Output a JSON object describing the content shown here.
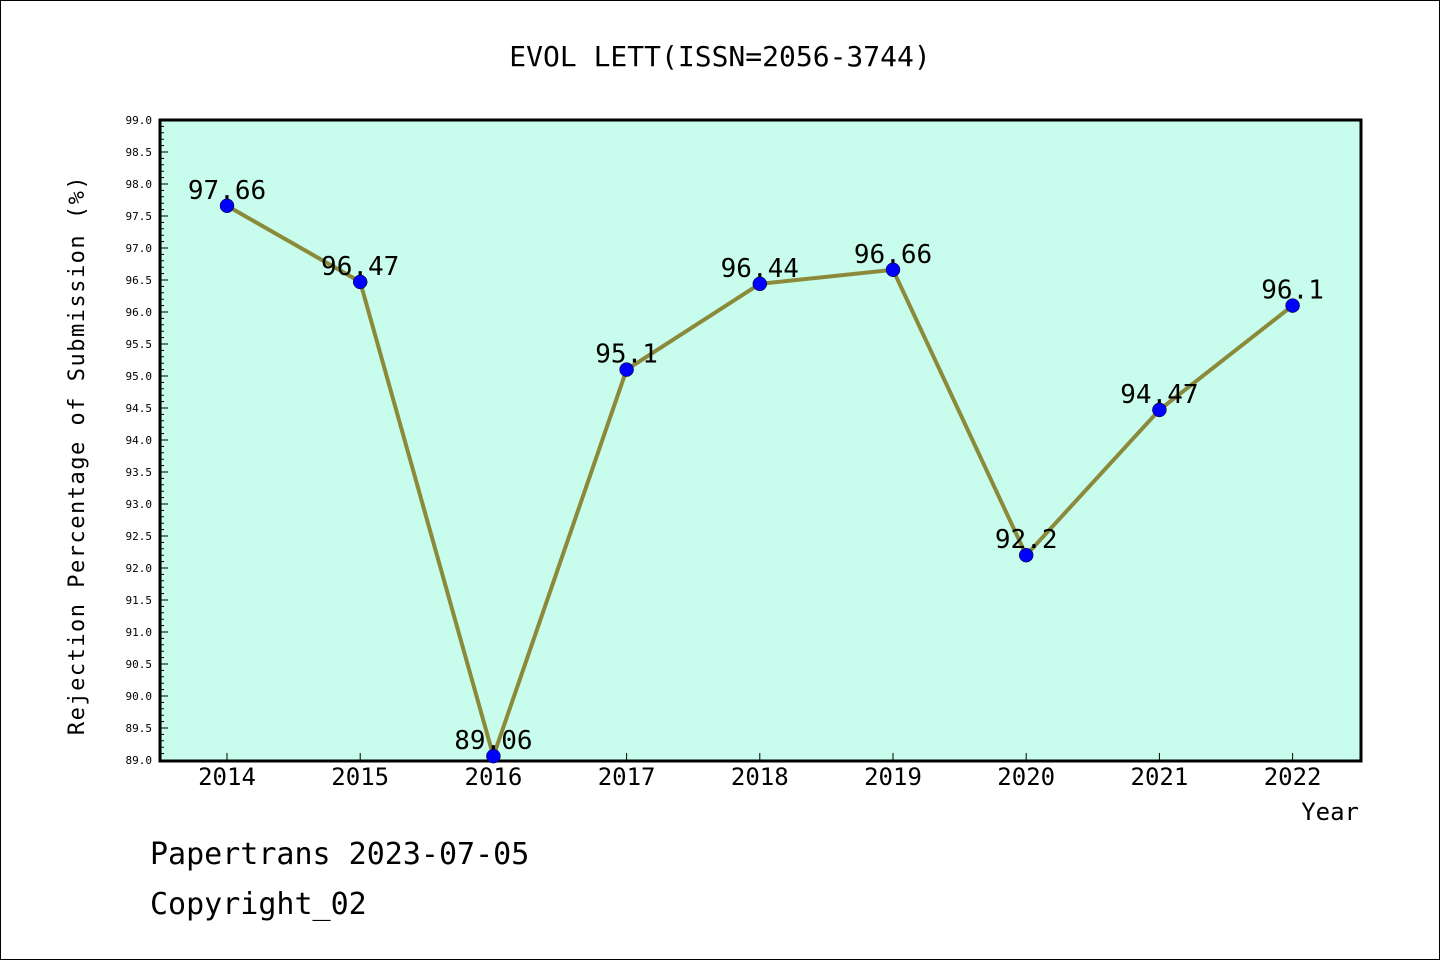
{
  "footer": {
    "line1": "Papertrans 2023-07-05",
    "line2": "Copyright_02"
  },
  "colors": {
    "plot_background": "#c8fcec",
    "line": "#8b8a3a",
    "marker": "#0000ff"
  },
  "chart_data": {
    "type": "line",
    "title": "EVOL LETT(ISSN=2056-3744)",
    "xlabel": "Year",
    "ylabel": "Rejection Percentage of Submission (%)",
    "ylim": [
      89.0,
      99.0
    ],
    "y_ticks": [
      "89.0",
      "89.5",
      "90.0",
      "90.5",
      "91.0",
      "91.5",
      "92.0",
      "92.5",
      "93.0",
      "93.5",
      "94.0",
      "94.5",
      "95.0",
      "95.5",
      "96.0",
      "96.5",
      "97.0",
      "97.5",
      "98.0",
      "98.5",
      "99.0"
    ],
    "categories": [
      "2014",
      "2015",
      "2016",
      "2017",
      "2018",
      "2019",
      "2020",
      "2021",
      "2022"
    ],
    "values": [
      97.66,
      96.47,
      89.06,
      95.1,
      96.44,
      96.66,
      92.2,
      94.47,
      96.1
    ],
    "data_labels": [
      "97.66",
      "96.47",
      "89.06",
      "95.1",
      "96.44",
      "96.66",
      "92.2",
      "94.47",
      "96.1"
    ],
    "grid": false,
    "legend": "none"
  }
}
